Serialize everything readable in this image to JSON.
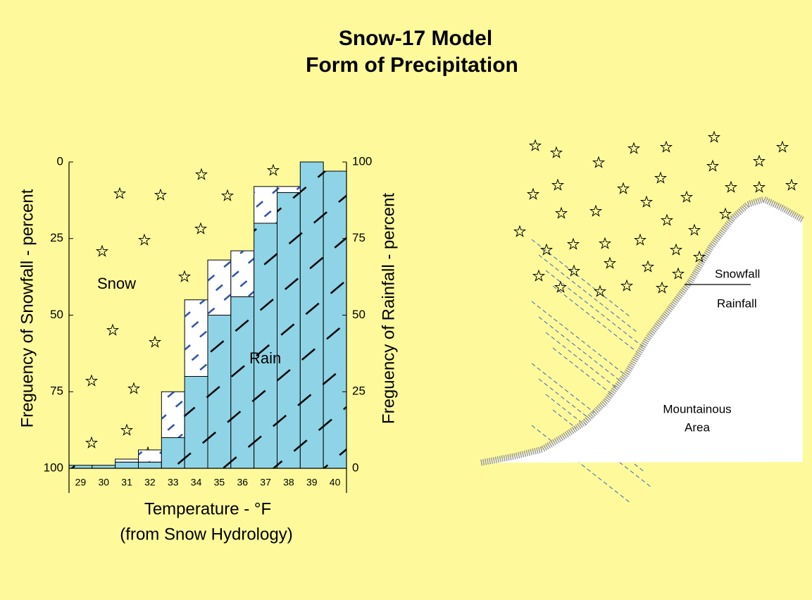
{
  "chart_data": {
    "type": "bar",
    "title": "Snow-17 Model",
    "subtitle": "Form of Precipitation",
    "ylabel": "Freguency of Snowfall - percent",
    "y2label": "Freguency of Rainfall - percent",
    "xlabel": "Temperature - °F",
    "xlabel_note": "(from Snow Hydrology)",
    "categories": [
      "29",
      "30",
      "31",
      "32",
      "33",
      "34",
      "35",
      "36",
      "37",
      "38",
      "39",
      "40"
    ],
    "series": [
      {
        "name": "Snow",
        "color": "#fefa9c",
        "axis": "y",
        "values": [
          99,
          99,
          97,
          94,
          75,
          45,
          32,
          29,
          8,
          8,
          0,
          3
        ]
      },
      {
        "name": "Rain",
        "color": "#8fd4e6",
        "axis": "y2",
        "values": [
          1,
          1,
          2,
          2,
          10,
          30,
          50,
          56,
          80,
          90,
          100,
          97
        ]
      }
    ],
    "ylim": [
      0,
      100
    ],
    "yreversed": true,
    "yticks": [
      0,
      25,
      50,
      75,
      100
    ],
    "y2lim": [
      0,
      100
    ],
    "y2ticks": [
      0,
      25,
      50,
      75,
      100
    ],
    "mixed_color": "#ffffff"
  },
  "diagram": {
    "snowfall": "Snowfall",
    "rainfall": "Rainfall",
    "area": [
      "Mountainous",
      "Area"
    ]
  }
}
